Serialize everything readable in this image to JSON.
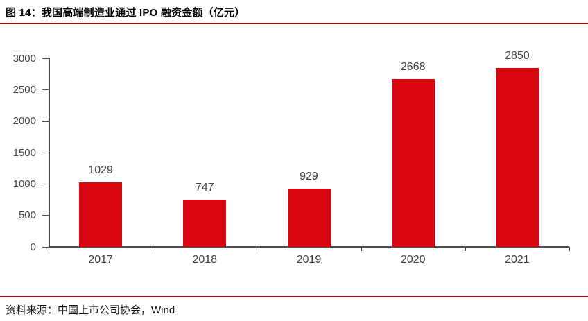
{
  "figure": {
    "title": "图 14：我国高端制造业通过 IPO 融资金额（亿元）",
    "source": "资料来源：中国上市公司协会，Wind"
  },
  "colors": {
    "bar": "#D7050F",
    "divider": "#A00D0D",
    "axis": "#4d4d4d",
    "tick_label": "#404040",
    "title_text": "#000000"
  },
  "chart_data": {
    "type": "bar",
    "title": "图 14：我国高端制造业通过 IPO 融资金额（亿元）",
    "categories": [
      "2017",
      "2018",
      "2019",
      "2020",
      "2021"
    ],
    "values": [
      1029,
      747,
      929,
      2668,
      2850
    ],
    "data_labels_shown": true,
    "xlabel": "",
    "ylabel": "",
    "ylim": [
      0,
      3000
    ],
    "yticks": [
      0,
      500,
      1000,
      1500,
      2000,
      2500,
      3000
    ],
    "grid": false,
    "legend": "none",
    "bar_color": "#D7050F"
  }
}
